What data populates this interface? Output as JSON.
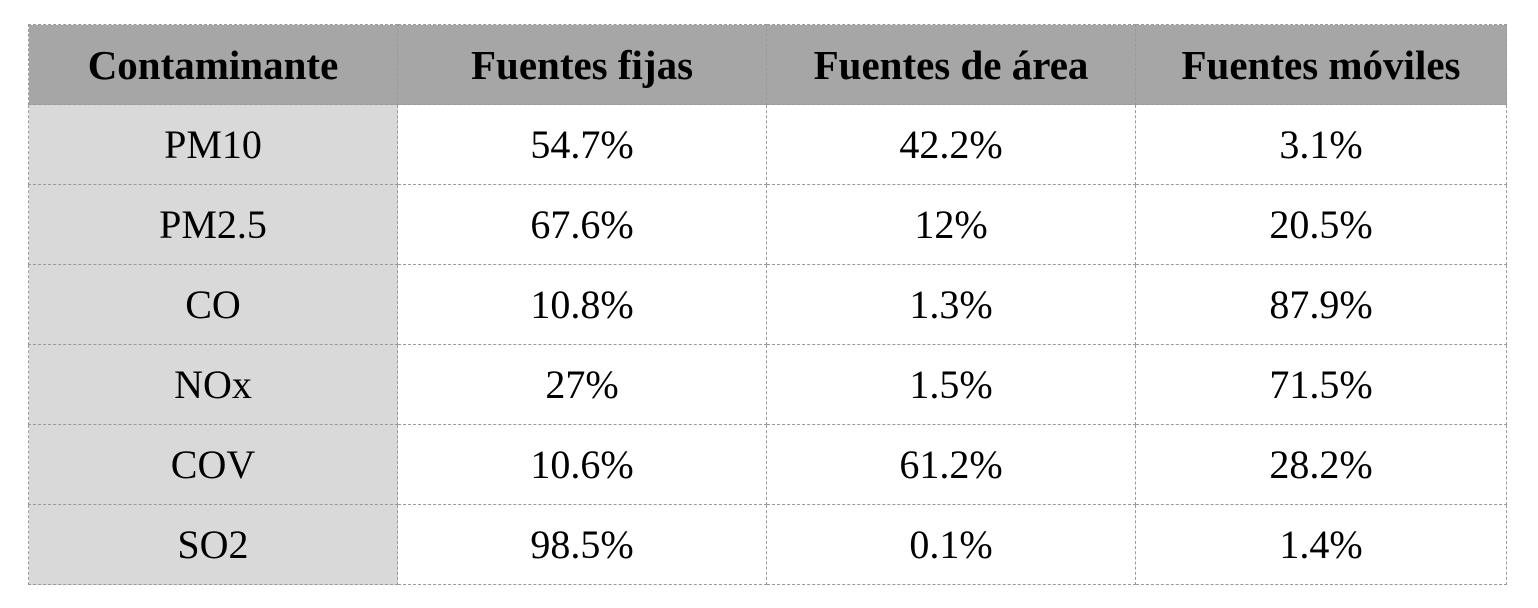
{
  "table": {
    "headers": [
      "Contaminante",
      "Fuentes fijas",
      "Fuentes de área",
      "Fuentes móviles"
    ],
    "rows": [
      [
        "PM10",
        "54.7%",
        "42.2%",
        "3.1%"
      ],
      [
        "PM2.5",
        "67.6%",
        "12%",
        "20.5%"
      ],
      [
        "CO",
        "10.8%",
        "1.3%",
        "87.9%"
      ],
      [
        "NOx",
        "27%",
        "1.5%",
        "71.5%"
      ],
      [
        "COV",
        "10.6%",
        "61.2%",
        "28.2%"
      ],
      [
        "SO2",
        "98.5%",
        "0.1%",
        "1.4%"
      ]
    ]
  },
  "colors": {
    "header_background": "#a6a6a6",
    "first_column_background": "#d9d9d9",
    "grid_line": "#9a9a9a"
  }
}
